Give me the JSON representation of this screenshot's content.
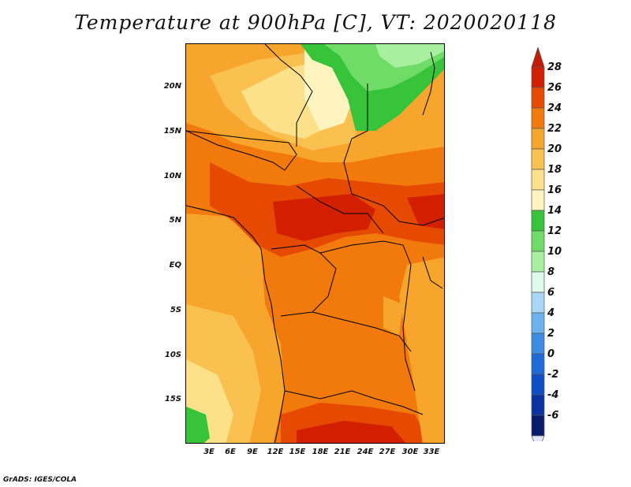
{
  "title": "Temperature at 900hPa [C], VT: 2020020118",
  "credit": "GrADS: IGES/COLA",
  "lat_labels": [
    "20N",
    "15N",
    "10N",
    "5N",
    "EQ",
    "5S",
    "10S",
    "15S"
  ],
  "lon_labels": [
    "3E",
    "6E",
    "9E",
    "12E",
    "15E",
    "18E",
    "21E",
    "24E",
    "27E",
    "30E",
    "33E"
  ],
  "colorbar": {
    "labels": [
      "28",
      "26",
      "24",
      "22",
      "20",
      "18",
      "16",
      "14",
      "12",
      "10",
      "8",
      "6",
      "4",
      "2",
      "0",
      "-2",
      "-4",
      "-6"
    ],
    "colors": [
      "#d11f00",
      "#e64a00",
      "#f27a0c",
      "#f7a52c",
      "#fac050",
      "#fde08a",
      "#fdf4bf",
      "#37c43a",
      "#6fdc67",
      "#a6f0a0",
      "#ddfbea",
      "#a8d8f6",
      "#6ab3ee",
      "#3d8be2",
      "#1c6bd9",
      "#0f4fc6",
      "#0a32a0",
      "#071a6e"
    ],
    "over_color": "#c41a00",
    "under_color": "#e1e6fa"
  }
}
